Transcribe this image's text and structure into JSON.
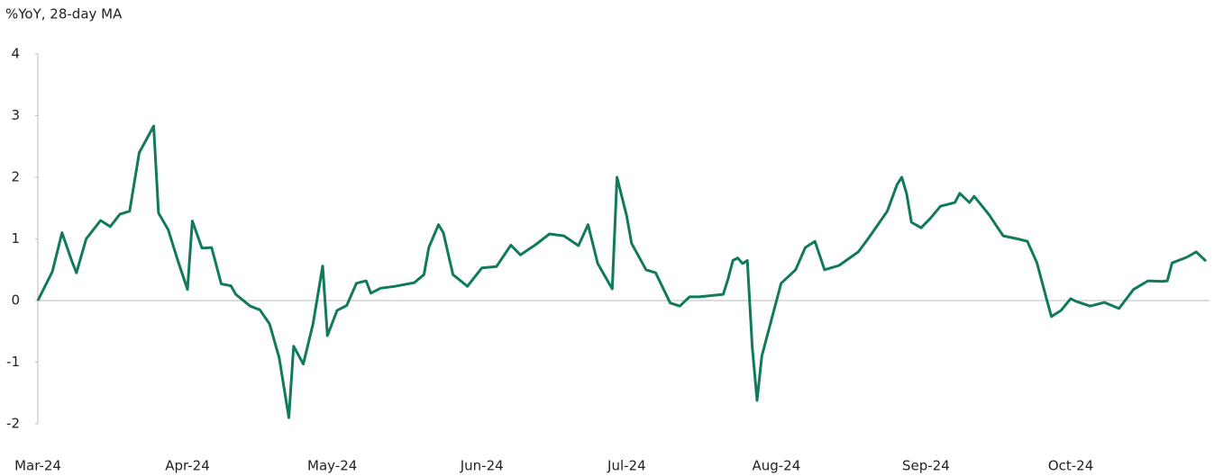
{
  "chart_data": {
    "type": "line",
    "ylabel": "%YoY, 28-day MA",
    "x": [
      0,
      3,
      5,
      7,
      8,
      10,
      13,
      15,
      17,
      19,
      21,
      24,
      25,
      27,
      29,
      31,
      32,
      34,
      36,
      38,
      40,
      41,
      44,
      46,
      48,
      50,
      52,
      53,
      55,
      57,
      59,
      60,
      62,
      64,
      66,
      68,
      69,
      71,
      74,
      78,
      80,
      81,
      83,
      84,
      86,
      89,
      92,
      95,
      98,
      100,
      103,
      106,
      109,
      112,
      114,
      116,
      119,
      120,
      122,
      123,
      126,
      128,
      131,
      133,
      135,
      137,
      142,
      143,
      144,
      145,
      146,
      147,
      148,
      149,
      150,
      152,
      154,
      157,
      159,
      161,
      163,
      166,
      170,
      172,
      176,
      178,
      179,
      180,
      181,
      183,
      185,
      187,
      190,
      191,
      193,
      194,
      197,
      200,
      203,
      205,
      207,
      209,
      210,
      212,
      214,
      215,
      218,
      221,
      224,
      227,
      230,
      233,
      234,
      235,
      238,
      240,
      242
    ],
    "series": [
      {
        "name": "%YoY, 28-day MA",
        "color": "#127a5c",
        "values": [
          0,
          0.47,
          1.1,
          0.65,
          0.45,
          1.0,
          1.3,
          1.2,
          1.4,
          1.45,
          2.4,
          2.83,
          1.42,
          1.15,
          0.65,
          0.18,
          1.29,
          0.85,
          0.86,
          0.27,
          0.24,
          0.1,
          -0.09,
          -0.15,
          -0.38,
          -0.93,
          -1.9,
          -0.74,
          -1.03,
          -0.38,
          0.56,
          -0.57,
          -0.16,
          -0.08,
          0.28,
          0.32,
          0.12,
          0.2,
          0.23,
          0.29,
          0.42,
          0.86,
          1.23,
          1.1,
          0.42,
          0.23,
          0.53,
          0.55,
          0.9,
          0.74,
          0.9,
          1.08,
          1.05,
          0.89,
          1.23,
          0.6,
          0.19,
          2.0,
          1.37,
          0.93,
          0.5,
          0.45,
          -0.04,
          -0.09,
          0.06,
          0.06,
          0.1,
          0.35,
          0.65,
          0.69,
          0.6,
          0.65,
          -0.74,
          -1.62,
          -0.9,
          -0.31,
          0.28,
          0.5,
          0.86,
          0.96,
          0.5,
          0.57,
          0.79,
          1.0,
          1.45,
          1.88,
          2.0,
          1.73,
          1.27,
          1.18,
          1.34,
          1.53,
          1.59,
          1.74,
          1.59,
          1.69,
          1.4,
          1.05,
          1.0,
          0.96,
          0.61,
          0.02,
          -0.26,
          -0.16,
          0.03,
          -0.01,
          -0.09,
          -0.03,
          -0.13,
          0.18,
          0.32,
          0.31,
          0.32,
          0.61,
          0.7,
          0.79,
          0.64
        ]
      }
    ],
    "xlim": [
      0,
      242
    ],
    "xticks": [
      {
        "value": 0,
        "label": "Mar-24"
      },
      {
        "value": 31,
        "label": "Apr-24"
      },
      {
        "value": 61,
        "label": "May-24"
      },
      {
        "value": 92,
        "label": "Jun-24"
      },
      {
        "value": 122,
        "label": "Jul-24"
      },
      {
        "value": 153,
        "label": "Aug-24"
      },
      {
        "value": 184,
        "label": "Sep-24"
      },
      {
        "value": 214,
        "label": "Oct-24"
      }
    ],
    "ylim": [
      -2,
      4
    ],
    "yticks": [
      -2,
      -1,
      0,
      1,
      2,
      3,
      4
    ]
  }
}
